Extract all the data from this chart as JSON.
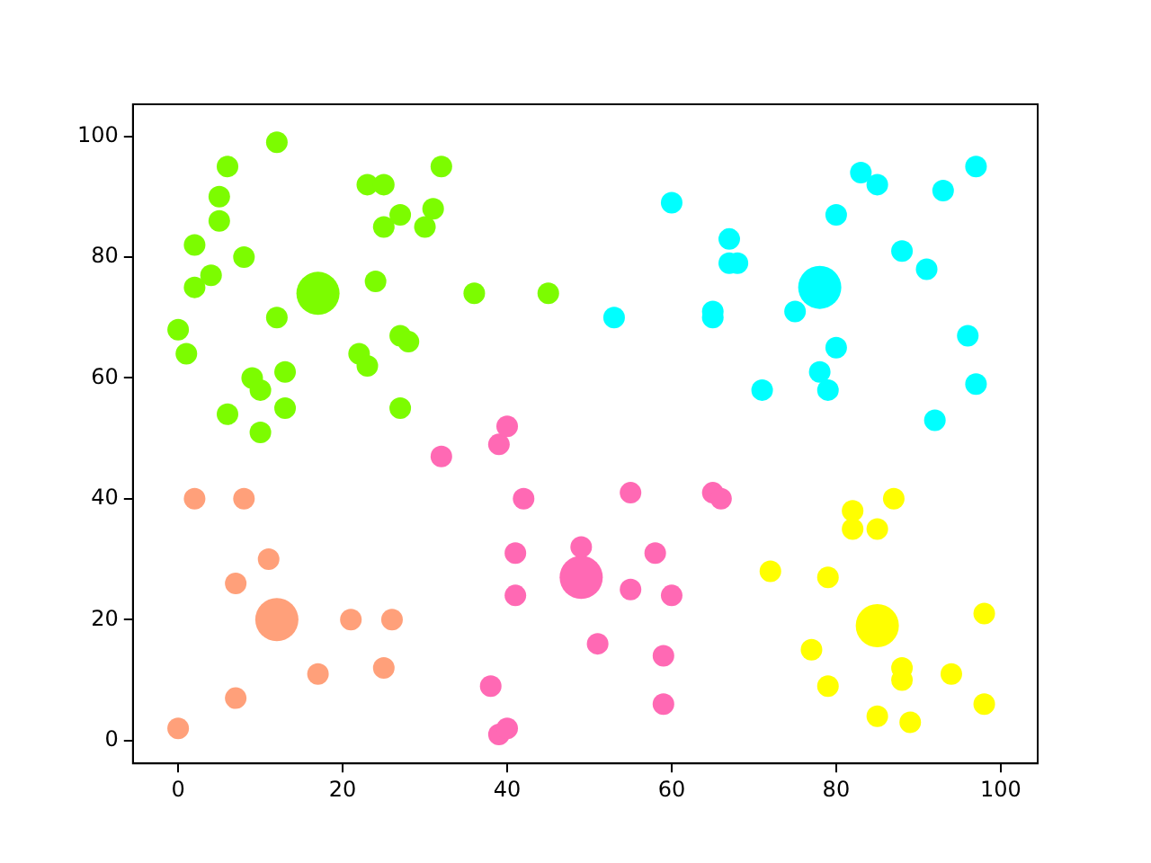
{
  "chart_data": {
    "type": "bubble",
    "xlim": [
      -5.5,
      104.5
    ],
    "ylim": [
      -3.8,
      105.3
    ],
    "xticks": [
      0,
      20,
      40,
      60,
      80,
      100
    ],
    "yticks": [
      0,
      20,
      40,
      60,
      80,
      100
    ],
    "grid": false,
    "legend": false,
    "series": [
      {
        "color": "#7cfc00",
        "x": [
          0,
          1,
          2,
          2,
          4,
          5,
          5,
          6,
          6,
          8,
          9,
          10,
          10,
          12,
          12,
          13,
          13,
          22,
          23,
          23,
          24,
          25,
          25,
          27,
          27,
          27,
          28,
          30,
          31,
          32,
          36,
          45,
          17
        ],
        "values": [
          68,
          64,
          82,
          75,
          77,
          86,
          90,
          95,
          54,
          80,
          60,
          58,
          51,
          99,
          70,
          61,
          55,
          64,
          92,
          62,
          76,
          92,
          85,
          87,
          67,
          55,
          66,
          85,
          88,
          95,
          74,
          74,
          74
        ],
        "sizes": [
          0.25,
          0.25,
          0.25,
          0.25,
          0.25,
          0.25,
          0.25,
          0.25,
          0.25,
          0.25,
          0.25,
          0.25,
          0.25,
          0.25,
          0.25,
          0.25,
          0.25,
          0.25,
          0.25,
          0.25,
          0.25,
          0.25,
          0.25,
          0.25,
          0.25,
          0.25,
          0.25,
          0.25,
          0.25,
          0.25,
          0.25,
          0.25,
          1
        ]
      },
      {
        "color": "#00ffff",
        "x": [
          53,
          60,
          65,
          65,
          67,
          67,
          68,
          71,
          75,
          78,
          79,
          80,
          80,
          83,
          85,
          88,
          91,
          92,
          93,
          96,
          97,
          97,
          78
        ],
        "values": [
          70,
          89,
          71,
          70,
          83,
          79,
          79,
          58,
          71,
          61,
          58,
          87,
          65,
          94,
          92,
          81,
          78,
          53,
          91,
          67,
          95,
          59,
          75
        ],
        "sizes": [
          0.25,
          0.25,
          0.25,
          0.25,
          0.25,
          0.25,
          0.25,
          0.25,
          0.25,
          0.25,
          0.25,
          0.25,
          0.25,
          0.25,
          0.25,
          0.25,
          0.25,
          0.25,
          0.25,
          0.25,
          0.25,
          0.25,
          1
        ]
      },
      {
        "color": "#ffa07a",
        "x": [
          0,
          2,
          7,
          7,
          8,
          11,
          17,
          21,
          25,
          26,
          12
        ],
        "values": [
          2,
          40,
          26,
          7,
          40,
          30,
          11,
          20,
          12,
          20,
          20
        ],
        "sizes": [
          0.25,
          0.25,
          0.25,
          0.25,
          0.25,
          0.25,
          0.25,
          0.25,
          0.25,
          0.25,
          1
        ]
      },
      {
        "color": "#ff69b4",
        "x": [
          32,
          38,
          39,
          39,
          40,
          40,
          41,
          41,
          42,
          49,
          51,
          55,
          55,
          58,
          59,
          59,
          60,
          65,
          66,
          49
        ],
        "values": [
          47,
          9,
          49,
          1,
          2,
          52,
          31,
          24,
          40,
          32,
          16,
          41,
          25,
          31,
          14,
          6,
          24,
          41,
          40,
          27
        ],
        "sizes": [
          0.25,
          0.25,
          0.25,
          0.25,
          0.25,
          0.25,
          0.25,
          0.25,
          0.25,
          0.25,
          0.25,
          0.25,
          0.25,
          0.25,
          0.25,
          0.25,
          0.25,
          0.25,
          0.25,
          1
        ]
      },
      {
        "color": "#ffff00",
        "x": [
          72,
          77,
          79,
          79,
          82,
          82,
          85,
          85,
          87,
          88,
          88,
          89,
          94,
          98,
          98,
          85
        ],
        "values": [
          28,
          15,
          27,
          9,
          38,
          35,
          35,
          4,
          40,
          12,
          10,
          3,
          11,
          21,
          6,
          19
        ],
        "sizes": [
          0.25,
          0.25,
          0.25,
          0.25,
          0.25,
          0.25,
          0.25,
          0.25,
          0.25,
          0.25,
          0.25,
          0.25,
          0.25,
          0.25,
          0.25,
          1
        ]
      }
    ]
  }
}
